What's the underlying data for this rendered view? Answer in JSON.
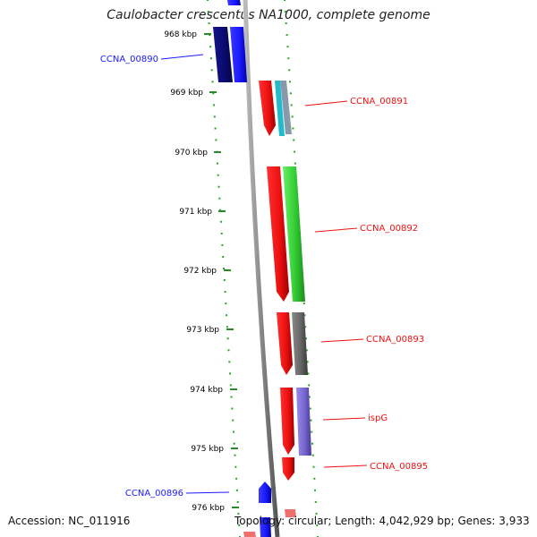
{
  "title": "Caulobacter crescentus NA1000, complete genome",
  "footer": {
    "accession": "Accession: NC_011916",
    "stats": "Topology: circular; Length: 4,042,929 bp; Genes: 3,933"
  },
  "ticks": [
    {
      "label": "968 kbp"
    },
    {
      "label": "969 kbp"
    },
    {
      "label": "970 kbp"
    },
    {
      "label": "971 kbp"
    },
    {
      "label": "972 kbp"
    },
    {
      "label": "973 kbp"
    },
    {
      "label": "974 kbp"
    },
    {
      "label": "975 kbp"
    },
    {
      "label": "976 kbp"
    }
  ],
  "genes": [
    {
      "label": "CCNA_00890",
      "strand": "minus",
      "color": "#1a1aff"
    },
    {
      "label": "CCNA_00891",
      "strand": "plus",
      "color": "#ee1111"
    },
    {
      "label": "CCNA_00892",
      "strand": "plus",
      "color": "#ee1111"
    },
    {
      "label": "CCNA_00893",
      "strand": "plus",
      "color": "#ee1111"
    },
    {
      "label": "ispG",
      "strand": "plus",
      "color": "#ee1111"
    },
    {
      "label": "CCNA_00895",
      "strand": "plus",
      "color": "#ee1111"
    },
    {
      "label": "CCNA_00896",
      "strand": "minus",
      "color": "#1a1aff"
    }
  ],
  "colors": {
    "forward": "#ee1111",
    "reverse": "#1a1aff",
    "cog_dark_navy": "#0a0a6e",
    "cog_green": "#33cc33",
    "cog_grey": "#666666",
    "cog_lavender": "#7766cc",
    "cog_cyan": "#22bbcc",
    "backbone": "#888888",
    "tick": "#2a8a2a",
    "dots": "#22aa22"
  }
}
